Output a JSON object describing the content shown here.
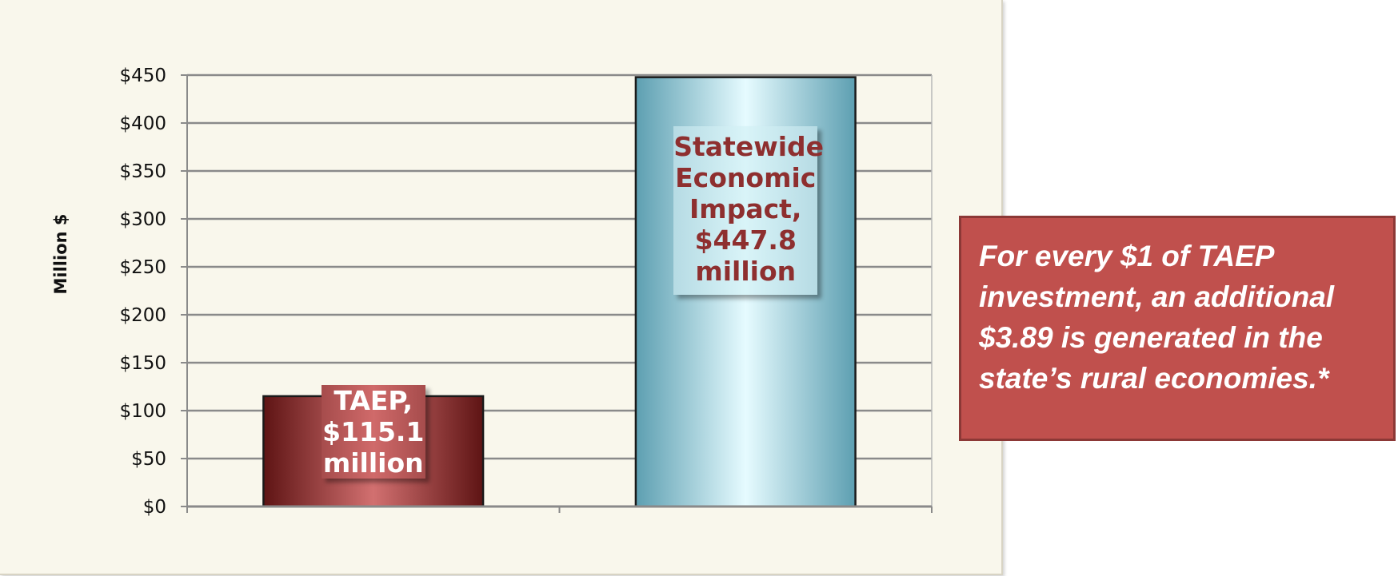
{
  "chart_data": {
    "type": "bar",
    "title": "",
    "xlabel": "",
    "ylabel": "Million $",
    "ylim": [
      0,
      450
    ],
    "yticks": [
      "$0",
      "$50",
      "$100",
      "$150",
      "$200",
      "$250",
      "$300",
      "$350",
      "$400",
      "$450"
    ],
    "ytick_values": [
      0,
      50,
      100,
      150,
      200,
      250,
      300,
      350,
      400,
      450
    ],
    "grid": true,
    "categories": [
      "TAEP",
      "Statewide Economic Impact"
    ],
    "values": [
      115.1,
      447.8
    ],
    "data_labels": [
      "TAEP,\n$115.1\nmillion",
      "Statewide\nEconomic\nImpact,\n$447.8\nmillion"
    ],
    "bar_colors": [
      "#8b2a2a",
      "#8fd3e3"
    ]
  },
  "callout": {
    "text": "For every $1 of TAEP investment, an additional $3.89 is generated in the state’s rural economies.*",
    "color": "#c0504d"
  }
}
